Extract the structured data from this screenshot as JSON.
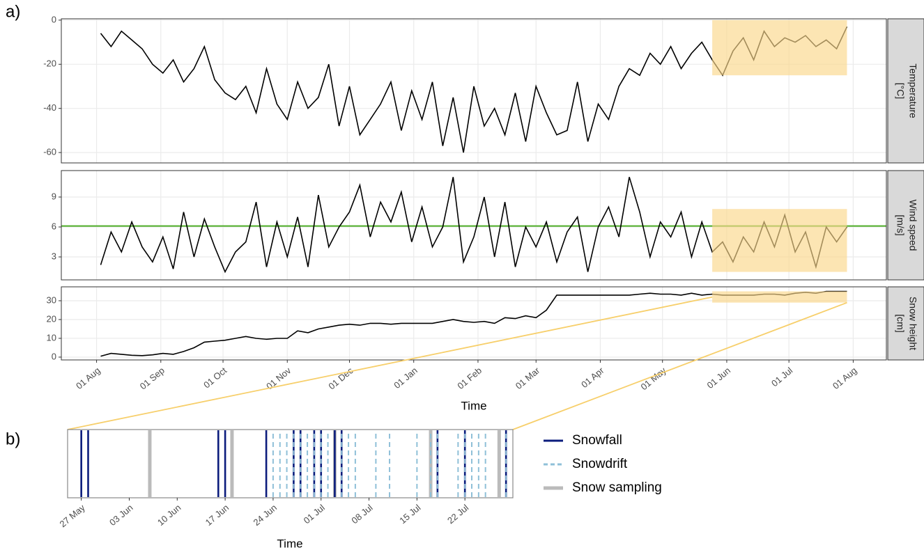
{
  "chart_data": [
    {
      "type": "facet_line",
      "panel_label": "a)",
      "x_label": "Time",
      "xlim": [
        "15 Jul",
        "17 Aug"
      ],
      "xticks": [
        "01 Aug",
        "01 Sep",
        "01 Oct",
        "01 Nov",
        "01 Dec",
        "01 Jan",
        "01 Feb",
        "01 Mar",
        "01 Apr",
        "01 May",
        "01 Jun",
        "01 Jul",
        "01 Aug"
      ],
      "grid": true,
      "highlight_x": [
        "25 May",
        "29 Jul"
      ],
      "highlight_color": "#fbd78b",
      "x": [
        "03 Aug",
        "08 Aug",
        "13 Aug",
        "18 Aug",
        "23 Aug",
        "28 Aug",
        "02 Sep",
        "07 Sep",
        "12 Sep",
        "17 Sep",
        "22 Sep",
        "27 Sep",
        "02 Oct",
        "07 Oct",
        "12 Oct",
        "17 Oct",
        "22 Oct",
        "27 Oct",
        "01 Nov",
        "06 Nov",
        "11 Nov",
        "16 Nov",
        "21 Nov",
        "26 Nov",
        "01 Dec",
        "06 Dec",
        "11 Dec",
        "16 Dec",
        "21 Dec",
        "26 Dec",
        "31 Dec",
        "05 Jan",
        "10 Jan",
        "15 Jan",
        "20 Jan",
        "25 Jan",
        "30 Jan",
        "04 Feb",
        "09 Feb",
        "14 Feb",
        "19 Feb",
        "24 Feb",
        "01 Mar",
        "06 Mar",
        "11 Mar",
        "16 Mar",
        "21 Mar",
        "26 Mar",
        "31 Mar",
        "05 Apr",
        "10 Apr",
        "15 Apr",
        "20 Apr",
        "25 Apr",
        "30 Apr",
        "05 May",
        "10 May",
        "15 May",
        "20 May",
        "25 May",
        "30 May",
        "04 Jun",
        "09 Jun",
        "14 Jun",
        "19 Jun",
        "24 Jun",
        "29 Jun",
        "04 Jul",
        "09 Jul",
        "14 Jul",
        "19 Jul",
        "24 Jul",
        "29 Jul"
      ],
      "facets": [
        {
          "strip": [
            "Temperature",
            "[°C]"
          ],
          "color": "#000000",
          "ylim": [
            -64.7,
            0.6
          ],
          "yticks": [
            0,
            -20,
            -40,
            -60
          ],
          "highlight": [
            -25,
            0
          ],
          "values": [
            -6,
            -12,
            -5,
            -9,
            -13,
            -20,
            -24,
            -18,
            -28,
            -22,
            -12,
            -27,
            -33,
            -36,
            -30,
            -42,
            -22,
            -38,
            -45,
            -28,
            -40,
            -35,
            -20,
            -48,
            -30,
            -52,
            -45,
            -38,
            -28,
            -50,
            -32,
            -45,
            -28,
            -57,
            -35,
            -60,
            -30,
            -48,
            -40,
            -52,
            -33,
            -55,
            -30,
            -42,
            -52,
            -50,
            -28,
            -55,
            -38,
            -45,
            -30,
            -22,
            -25,
            -15,
            -20,
            -12,
            -22,
            -15,
            -10,
            -18,
            -25,
            -14,
            -8,
            -18,
            -5,
            -12,
            -8,
            -10,
            -7,
            -12,
            -9,
            -13,
            -3
          ]
        },
        {
          "strip": [
            "Wind speed",
            "[m/s]"
          ],
          "color": "#000000",
          "ylim": [
            0.7,
            11.65
          ],
          "yticks": [
            3,
            6,
            9
          ],
          "highlight": [
            1.5,
            7.8
          ],
          "reference_line": {
            "value": 6.1,
            "color": "#4dac26"
          },
          "values": [
            2.2,
            5.5,
            3.5,
            6.5,
            4,
            2.5,
            5,
            1.8,
            7.5,
            3,
            6.8,
            4,
            1.5,
            3.5,
            4.5,
            8.5,
            2,
            6.5,
            3,
            7,
            2,
            9.2,
            4,
            6,
            7.5,
            10.2,
            5,
            8.5,
            6.5,
            9.5,
            4.5,
            8,
            4,
            6,
            11,
            2.5,
            5,
            9,
            3,
            8.5,
            2,
            6,
            4,
            6.5,
            2.5,
            5.5,
            7,
            1.5,
            6,
            8,
            5,
            11,
            7.5,
            3,
            6.5,
            5,
            7.5,
            3,
            6.5,
            3.5,
            4.5,
            2.5,
            5,
            3.5,
            6.5,
            4,
            7.2,
            3.5,
            5.5,
            2,
            6,
            4.5,
            6
          ]
        },
        {
          "strip": [
            "Snow height",
            "[cm]"
          ],
          "color": "#000000",
          "ylim": [
            -1.5,
            37.4
          ],
          "yticks": [
            0,
            10,
            20,
            30
          ],
          "highlight": [
            29,
            35
          ],
          "values": [
            0.5,
            2,
            1.5,
            1,
            0.8,
            1.2,
            2,
            1.5,
            3,
            5,
            8,
            8.5,
            9,
            10,
            11,
            10,
            9.5,
            10,
            10,
            14,
            13,
            15,
            16,
            17,
            17.5,
            17,
            18,
            18,
            17.5,
            18,
            18,
            18,
            18,
            19,
            20,
            19,
            18.5,
            19,
            18,
            21,
            20.5,
            22,
            21,
            25,
            33,
            33,
            33,
            33,
            33,
            33,
            33,
            33,
            33.5,
            34,
            33.5,
            33.5,
            33,
            34,
            33,
            33.5,
            33,
            33,
            33,
            33,
            33.5,
            33.5,
            33,
            34,
            34.5,
            34,
            35,
            35,
            35
          ]
        }
      ]
    },
    {
      "type": "event",
      "panel_label": "b)",
      "x_label": "Time",
      "legend": "right",
      "xlim": [
        "25 May",
        "29 Jul"
      ],
      "xticks": [
        "27 May",
        "03 Jun",
        "10 Jun",
        "17 Jun",
        "24 Jun",
        "01 Jul",
        "08 Jul",
        "15 Jul",
        "22 Jul"
      ],
      "series": [
        {
          "name": "Snow sampling",
          "color": "#bbbbbb",
          "linetype": "solid",
          "dates": [
            "06 Jun",
            "18 Jun",
            "03 Jul",
            "17 Jul",
            "27 Jul"
          ]
        },
        {
          "name": "Snowfall",
          "color": "#0b1c7c",
          "linetype": "solid",
          "dates": [
            "27 May",
            "28 May",
            "16 Jun",
            "17 Jun",
            "23 Jun",
            "27 Jun",
            "28 Jun",
            "30 Jun",
            "01 Jul",
            "03 Jul",
            "04 Jul",
            "18 Jul",
            "22 Jul",
            "28 Jul"
          ]
        },
        {
          "name": "Snowdrift",
          "color": "#8fc0d8",
          "linetype": "dashed",
          "dates": [
            "24 Jun",
            "25 Jun",
            "26 Jun",
            "27 Jun",
            "28 Jun",
            "29 Jun",
            "30 Jun",
            "01 Jul",
            "02 Jul",
            "04 Jul",
            "05 Jul",
            "06 Jul",
            "09 Jul",
            "11 Jul",
            "15 Jul",
            "17 Jul",
            "18 Jul",
            "21 Jul",
            "22 Jul",
            "23 Jul",
            "24 Jul",
            "25 Jul",
            "28 Jul"
          ]
        }
      ]
    }
  ]
}
